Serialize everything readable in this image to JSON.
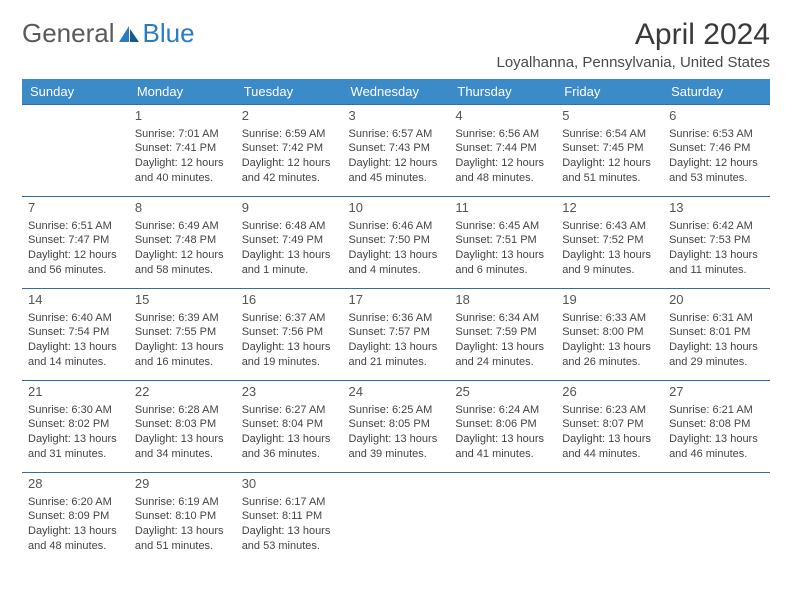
{
  "logo": {
    "text1": "General",
    "text2": "Blue"
  },
  "title": "April 2024",
  "location": "Loyalhanna, Pennsylvania, United States",
  "colors": {
    "header_bg": "#3b8bc9",
    "header_text": "#ffffff",
    "border": "#2f6fa3",
    "body_text": "#444444",
    "title_text": "#3a3a3a",
    "logo_gray": "#5a5a5a",
    "logo_blue": "#2b7bbf"
  },
  "weekdays": [
    "Sunday",
    "Monday",
    "Tuesday",
    "Wednesday",
    "Thursday",
    "Friday",
    "Saturday"
  ],
  "weeks": [
    [
      null,
      {
        "d": "1",
        "sr": "7:01 AM",
        "ss": "7:41 PM",
        "dl1": "12 hours",
        "dl2": "and 40 minutes."
      },
      {
        "d": "2",
        "sr": "6:59 AM",
        "ss": "7:42 PM",
        "dl1": "12 hours",
        "dl2": "and 42 minutes."
      },
      {
        "d": "3",
        "sr": "6:57 AM",
        "ss": "7:43 PM",
        "dl1": "12 hours",
        "dl2": "and 45 minutes."
      },
      {
        "d": "4",
        "sr": "6:56 AM",
        "ss": "7:44 PM",
        "dl1": "12 hours",
        "dl2": "and 48 minutes."
      },
      {
        "d": "5",
        "sr": "6:54 AM",
        "ss": "7:45 PM",
        "dl1": "12 hours",
        "dl2": "and 51 minutes."
      },
      {
        "d": "6",
        "sr": "6:53 AM",
        "ss": "7:46 PM",
        "dl1": "12 hours",
        "dl2": "and 53 minutes."
      }
    ],
    [
      {
        "d": "7",
        "sr": "6:51 AM",
        "ss": "7:47 PM",
        "dl1": "12 hours",
        "dl2": "and 56 minutes."
      },
      {
        "d": "8",
        "sr": "6:49 AM",
        "ss": "7:48 PM",
        "dl1": "12 hours",
        "dl2": "and 58 minutes."
      },
      {
        "d": "9",
        "sr": "6:48 AM",
        "ss": "7:49 PM",
        "dl1": "13 hours",
        "dl2": "and 1 minute."
      },
      {
        "d": "10",
        "sr": "6:46 AM",
        "ss": "7:50 PM",
        "dl1": "13 hours",
        "dl2": "and 4 minutes."
      },
      {
        "d": "11",
        "sr": "6:45 AM",
        "ss": "7:51 PM",
        "dl1": "13 hours",
        "dl2": "and 6 minutes."
      },
      {
        "d": "12",
        "sr": "6:43 AM",
        "ss": "7:52 PM",
        "dl1": "13 hours",
        "dl2": "and 9 minutes."
      },
      {
        "d": "13",
        "sr": "6:42 AM",
        "ss": "7:53 PM",
        "dl1": "13 hours",
        "dl2": "and 11 minutes."
      }
    ],
    [
      {
        "d": "14",
        "sr": "6:40 AM",
        "ss": "7:54 PM",
        "dl1": "13 hours",
        "dl2": "and 14 minutes."
      },
      {
        "d": "15",
        "sr": "6:39 AM",
        "ss": "7:55 PM",
        "dl1": "13 hours",
        "dl2": "and 16 minutes."
      },
      {
        "d": "16",
        "sr": "6:37 AM",
        "ss": "7:56 PM",
        "dl1": "13 hours",
        "dl2": "and 19 minutes."
      },
      {
        "d": "17",
        "sr": "6:36 AM",
        "ss": "7:57 PM",
        "dl1": "13 hours",
        "dl2": "and 21 minutes."
      },
      {
        "d": "18",
        "sr": "6:34 AM",
        "ss": "7:59 PM",
        "dl1": "13 hours",
        "dl2": "and 24 minutes."
      },
      {
        "d": "19",
        "sr": "6:33 AM",
        "ss": "8:00 PM",
        "dl1": "13 hours",
        "dl2": "and 26 minutes."
      },
      {
        "d": "20",
        "sr": "6:31 AM",
        "ss": "8:01 PM",
        "dl1": "13 hours",
        "dl2": "and 29 minutes."
      }
    ],
    [
      {
        "d": "21",
        "sr": "6:30 AM",
        "ss": "8:02 PM",
        "dl1": "13 hours",
        "dl2": "and 31 minutes."
      },
      {
        "d": "22",
        "sr": "6:28 AM",
        "ss": "8:03 PM",
        "dl1": "13 hours",
        "dl2": "and 34 minutes."
      },
      {
        "d": "23",
        "sr": "6:27 AM",
        "ss": "8:04 PM",
        "dl1": "13 hours",
        "dl2": "and 36 minutes."
      },
      {
        "d": "24",
        "sr": "6:25 AM",
        "ss": "8:05 PM",
        "dl1": "13 hours",
        "dl2": "and 39 minutes."
      },
      {
        "d": "25",
        "sr": "6:24 AM",
        "ss": "8:06 PM",
        "dl1": "13 hours",
        "dl2": "and 41 minutes."
      },
      {
        "d": "26",
        "sr": "6:23 AM",
        "ss": "8:07 PM",
        "dl1": "13 hours",
        "dl2": "and 44 minutes."
      },
      {
        "d": "27",
        "sr": "6:21 AM",
        "ss": "8:08 PM",
        "dl1": "13 hours",
        "dl2": "and 46 minutes."
      }
    ],
    [
      {
        "d": "28",
        "sr": "6:20 AM",
        "ss": "8:09 PM",
        "dl1": "13 hours",
        "dl2": "and 48 minutes."
      },
      {
        "d": "29",
        "sr": "6:19 AM",
        "ss": "8:10 PM",
        "dl1": "13 hours",
        "dl2": "and 51 minutes."
      },
      {
        "d": "30",
        "sr": "6:17 AM",
        "ss": "8:11 PM",
        "dl1": "13 hours",
        "dl2": "and 53 minutes."
      },
      null,
      null,
      null,
      null
    ]
  ],
  "labels": {
    "sunrise": "Sunrise: ",
    "sunset": "Sunset: ",
    "daylight": "Daylight: "
  }
}
